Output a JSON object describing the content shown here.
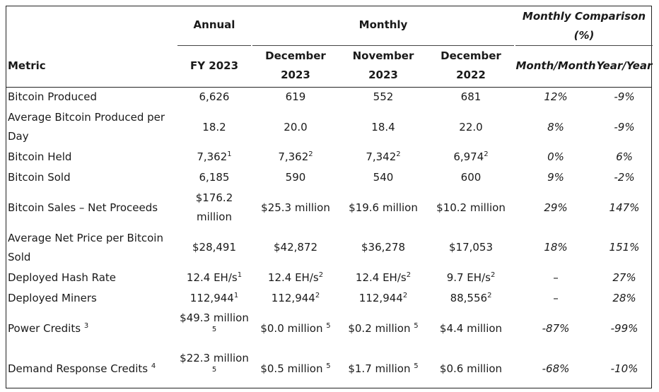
{
  "header": {
    "annual_label": "Annual",
    "monthly_label": "Monthly",
    "comparison_label_1": "Monthly Comparison",
    "comparison_label_2": "(%)",
    "metric_label": "Metric",
    "fy_label": "FY 2023",
    "dec23_line1": "December",
    "dec23_line2": "2023",
    "nov23_line1": "November",
    "nov23_line2": "2023",
    "dec22_line1": "December",
    "dec22_line2": "2022",
    "mom_label": "Month/Month",
    "yoy_label": "Year/Year"
  },
  "rows": [
    {
      "metric": "Bitcoin Produced",
      "fy": "6,626",
      "dec23": "619",
      "nov23": "552",
      "dec22": "681",
      "mom": "12%",
      "yoy": "-9%"
    },
    {
      "metric_1": "Average Bitcoin Produced per",
      "metric_2": "Day",
      "fy": "18.2",
      "dec23": "20.0",
      "nov23": "18.4",
      "dec22": "22.0",
      "mom": "8%",
      "yoy": "-9%"
    },
    {
      "metric": "Bitcoin Held",
      "fy": "7,362",
      "fy_sup": "1",
      "dec23": "7,362",
      "dec23_sup": "2",
      "nov23": "7,342",
      "nov23_sup": "2",
      "dec22": "6,974",
      "dec22_sup": "2",
      "mom": "0%",
      "yoy": "6%"
    },
    {
      "metric": "Bitcoin Sold",
      "fy": "6,185",
      "dec23": "590",
      "nov23": "540",
      "dec22": "600",
      "mom": "9%",
      "yoy": "-2%"
    },
    {
      "metric": "Bitcoin Sales – Net Proceeds",
      "fy_1": "$176.2",
      "fy_2": "million",
      "dec23": "$25.3 million",
      "nov23": "$19.6 million",
      "dec22": "$10.2 million",
      "mom": "29%",
      "yoy": "147%"
    },
    {
      "metric_1": "Average Net Price per Bitcoin",
      "metric_2": "Sold",
      "fy": "$28,491",
      "dec23": "$42,872",
      "nov23": "$36,278",
      "dec22": "$17,053",
      "mom": "18%",
      "yoy": "151%"
    },
    {
      "metric": "Deployed Hash Rate",
      "fy": "12.4 EH/s",
      "fy_sup": "1",
      "dec23": "12.4 EH/s",
      "dec23_sup": "2",
      "nov23": "12.4 EH/s",
      "nov23_sup": "2",
      "dec22": "9.7 EH/s",
      "dec22_sup": "2",
      "mom": "–",
      "yoy": "27%"
    },
    {
      "metric": "Deployed Miners",
      "fy": "112,944",
      "fy_sup": "1",
      "dec23": "112,944",
      "dec23_sup": "2",
      "nov23": "112,944",
      "nov23_sup": "2",
      "dec22": "88,556",
      "dec22_sup": "2",
      "mom": "–",
      "yoy": "28%"
    },
    {
      "metric": "Power Credits",
      "metric_sup": "3",
      "fy": "$49.3 million",
      "fy_sub": "5",
      "dec23": "$0.0 million",
      "dec23_sup": "5",
      "nov23": "$0.2 million",
      "nov23_sup": "5",
      "dec22": "$4.4 million",
      "mom": "-87%",
      "yoy": "-99%"
    },
    {
      "metric": "Demand Response Credits",
      "metric_sup": "4",
      "fy": "$22.3 million",
      "fy_sub": "5",
      "dec23": "$0.5 million",
      "dec23_sup": "5",
      "nov23": "$1.7 million",
      "nov23_sup": "5",
      "dec22": "$0.6 million",
      "mom": "-68%",
      "yoy": "-10%"
    }
  ]
}
